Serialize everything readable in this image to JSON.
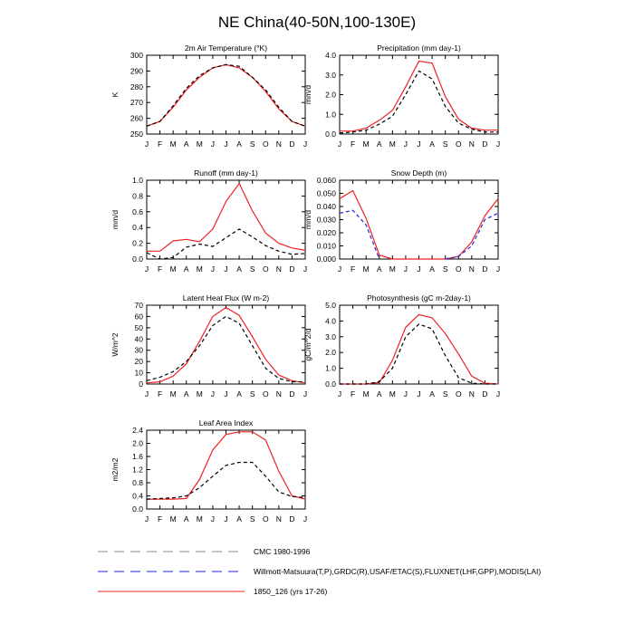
{
  "page_title": "NE China(40-50N,100-130E)",
  "colors": {
    "cmc": "#888888",
    "obs": "#2222dd",
    "model": "#ee2222"
  },
  "months": [
    "J",
    "F",
    "M",
    "A",
    "M",
    "J",
    "J",
    "A",
    "S",
    "O",
    "N",
    "D",
    "J"
  ],
  "legend": [
    {
      "label": "CMC 1980-1996",
      "color": "#888888",
      "style": "dashed"
    },
    {
      "label": "Willmott-Matsuura(T,P),GRDC(R),USAF/ETAC(S),FLUXNET(LHF,GPP),MODIS(LAI)",
      "color": "#2222dd",
      "style": "dashed"
    },
    {
      "label": "1850_126 (yrs 17-26)",
      "color": "#ee2222",
      "style": "solid"
    }
  ],
  "chart_data": [
    {
      "type": "line",
      "title": "2m Air Temperature (°K)",
      "ylabel": "K",
      "ylim": [
        250,
        300
      ],
      "yticks": [
        "250",
        "260",
        "270",
        "280",
        "290",
        "300"
      ],
      "series": [
        {
          "values": [
            255,
            258,
            267,
            278,
            286,
            292,
            294,
            292,
            286,
            277,
            266,
            258,
            255
          ],
          "color": "#ee2222",
          "dash": ""
        },
        {
          "values": [
            255,
            258,
            268,
            279,
            287,
            292,
            294,
            293,
            286,
            278,
            267,
            258,
            255
          ],
          "color": "#000000",
          "dash": "4,3"
        }
      ]
    },
    {
      "type": "line",
      "title": "Precipitation (mm day-1)",
      "ylabel": "mm/d",
      "ylim": [
        0,
        4
      ],
      "yticks": [
        "0.0",
        "1.0",
        "2.0",
        "3.0",
        "4.0"
      ],
      "series": [
        {
          "values": [
            0.15,
            0.15,
            0.3,
            0.7,
            1.2,
            2.4,
            3.7,
            3.6,
            1.9,
            0.75,
            0.3,
            0.2,
            0.2
          ],
          "color": "#ee2222",
          "dash": ""
        },
        {
          "values": [
            0.05,
            0.1,
            0.2,
            0.5,
            0.9,
            2.0,
            3.2,
            2.8,
            1.4,
            0.55,
            0.25,
            0.1,
            0.1
          ],
          "color": "#000000",
          "dash": "4,3"
        }
      ]
    },
    {
      "type": "line",
      "title": "Runoff (mm day-1)",
      "ylabel": "mm/d",
      "ylim": [
        0,
        1
      ],
      "yticks": [
        "0.0",
        "0.2",
        "0.4",
        "0.6",
        "0.8",
        "1.0"
      ],
      "series": [
        {
          "values": [
            0.1,
            0.1,
            0.23,
            0.25,
            0.22,
            0.38,
            0.73,
            0.96,
            0.61,
            0.33,
            0.2,
            0.14,
            0.11
          ],
          "color": "#ee2222",
          "dash": ""
        },
        {
          "values": [
            0.08,
            0.0,
            0.02,
            0.15,
            0.19,
            0.16,
            0.27,
            0.38,
            0.28,
            0.17,
            0.1,
            0.06,
            0.07
          ],
          "color": "#000000",
          "dash": "4,3"
        }
      ]
    },
    {
      "type": "line",
      "title": "Snow Depth (m)",
      "ylabel": "mm/d",
      "ylim": [
        0,
        0.06
      ],
      "yticks": [
        "0.000",
        "0.010",
        "0.020",
        "0.030",
        "0.040",
        "0.050",
        "0.060"
      ],
      "series": [
        {
          "values": [
            0.046,
            0.052,
            0.031,
            0.003,
            0,
            0,
            0,
            0,
            0,
            0.002,
            0.013,
            0.033,
            0.046
          ],
          "color": "#ee2222",
          "dash": ""
        },
        {
          "values": [
            0.035,
            0.037,
            0.026,
            0,
            null,
            null,
            null,
            null,
            0,
            0.002,
            0.01,
            0.03,
            0.035
          ],
          "color": "#2222dd",
          "dash": "4,3"
        }
      ]
    },
    {
      "type": "line",
      "title": "Latent Heat Flux (W m-2)",
      "ylabel": "W/m^2",
      "ylim": [
        0,
        70
      ],
      "yticks": [
        "0",
        "10",
        "20",
        "30",
        "40",
        "50",
        "60",
        "70"
      ],
      "series": [
        {
          "values": [
            1,
            2,
            7,
            18,
            38,
            60,
            68,
            61,
            42,
            22,
            8,
            3,
            1
          ],
          "color": "#ee2222",
          "dash": ""
        },
        {
          "values": [
            3,
            6,
            11,
            20,
            34,
            52,
            60,
            54,
            34,
            14,
            5,
            2,
            2
          ],
          "color": "#000000",
          "dash": "4,3"
        }
      ]
    },
    {
      "type": "line",
      "title": "Photosynthesis (gC m-2day-1)",
      "ylabel": "gC/m^2/d",
      "ylim": [
        0,
        5
      ],
      "yticks": [
        "0.0",
        "1.0",
        "2.0",
        "3.0",
        "4.0",
        "5.0"
      ],
      "series": [
        {
          "values": [
            0,
            0,
            0,
            0.1,
            1.5,
            3.6,
            4.4,
            4.2,
            3.2,
            1.9,
            0.5,
            0.05,
            0
          ],
          "color": "#ee2222",
          "dash": ""
        },
        {
          "values": [
            0,
            0,
            0,
            0.15,
            1.0,
            3.0,
            3.8,
            3.5,
            1.8,
            0.4,
            0.05,
            0,
            0
          ],
          "color": "#000000",
          "dash": "4,3"
        }
      ]
    },
    {
      "type": "line",
      "title": "Leaf Area Index",
      "ylabel": "m2/m2",
      "ylim": [
        0,
        2.4
      ],
      "yticks": [
        "0.0",
        "0.4",
        "0.8",
        "1.2",
        "1.6",
        "2.0",
        "2.4"
      ],
      "series": [
        {
          "values": [
            0.3,
            0.3,
            0.3,
            0.32,
            0.9,
            1.8,
            2.27,
            2.35,
            2.35,
            2.1,
            1.15,
            0.4,
            0.3
          ],
          "color": "#ee2222",
          "dash": ""
        },
        {
          "values": [
            0.3,
            0.32,
            0.34,
            0.4,
            0.65,
            1.0,
            1.33,
            1.42,
            1.42,
            1.0,
            0.52,
            0.38,
            0.35
          ],
          "color": "#000000",
          "dash": "4,3"
        }
      ]
    }
  ]
}
